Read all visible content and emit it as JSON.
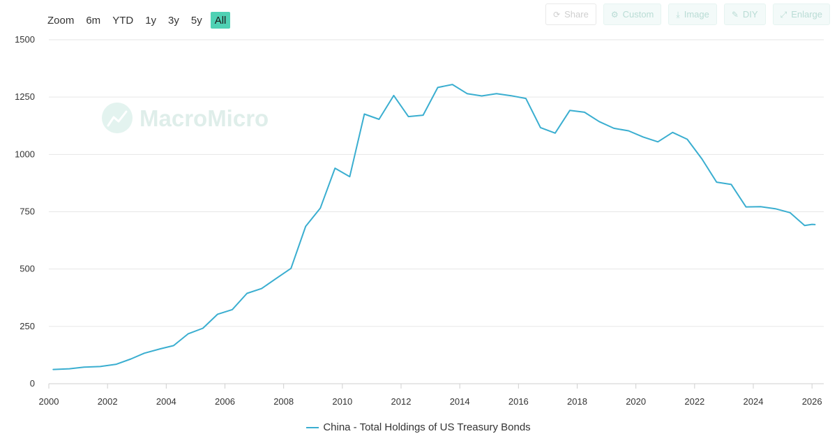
{
  "toolbar": {
    "zoom_label": "Zoom",
    "ranges": [
      "6m",
      "YTD",
      "1y",
      "3y",
      "5y",
      "All"
    ],
    "active_range": "All"
  },
  "actions": [
    {
      "label": "Share",
      "icon": "share-icon"
    },
    {
      "label": "Custom",
      "icon": "gear-icon"
    },
    {
      "label": "Image",
      "icon": "download-icon"
    },
    {
      "label": "DIY",
      "icon": "pencil-icon"
    },
    {
      "label": "Enlarge",
      "icon": "expand-icon"
    }
  ],
  "watermark": "MacroMicro",
  "colors": {
    "series": "#3aaed0",
    "active_zoom": "#4fd1b4",
    "grid": "#e6e6e6"
  },
  "chart_data": {
    "type": "line",
    "title": "",
    "xlabel": "",
    "ylabel": "",
    "xlim": [
      2000,
      2026.4
    ],
    "ylim": [
      0,
      1500
    ],
    "yticks": [
      0,
      250,
      500,
      750,
      1000,
      1250,
      1500
    ],
    "xticks": [
      2000,
      2002,
      2004,
      2006,
      2008,
      2010,
      2012,
      2014,
      2016,
      2018,
      2020,
      2022,
      2024,
      2026
    ],
    "grid": true,
    "legend_position": "bottom-center",
    "series": [
      {
        "name": "China - Total Holdings of US Treasury Bonds",
        "color": "#3aaed0",
        "x": [
          2000.15,
          2000.7,
          2001.2,
          2001.75,
          2002.3,
          2002.8,
          2003.25,
          2003.8,
          2004.25,
          2004.75,
          2005.25,
          2005.75,
          2006.25,
          2006.75,
          2007.25,
          2007.75,
          2008.25,
          2008.75,
          2009.25,
          2009.75,
          2010.25,
          2010.75,
          2011.25,
          2011.75,
          2012.25,
          2012.75,
          2013.25,
          2013.75,
          2014.25,
          2014.75,
          2015.25,
          2015.75,
          2016.25,
          2016.75,
          2017.25,
          2017.75,
          2018.25,
          2018.75,
          2019.25,
          2019.75,
          2020.25,
          2020.75,
          2021.25,
          2021.75,
          2022.25,
          2022.75,
          2023.25,
          2023.75,
          2024.25,
          2024.75,
          2025.25,
          2025.75,
          2026.0,
          2026.1
        ],
        "values": [
          62,
          65,
          72,
          75,
          85,
          108,
          133,
          152,
          166,
          218,
          242,
          303,
          323,
          394,
          415,
          459,
          503,
          686,
          766,
          940,
          903,
          1176,
          1153,
          1257,
          1165,
          1171,
          1292,
          1305,
          1265,
          1255,
          1265,
          1256,
          1244,
          1117,
          1093,
          1192,
          1184,
          1143,
          1114,
          1103,
          1076,
          1055,
          1096,
          1066,
          980,
          879,
          869,
          771,
          772,
          763,
          746,
          690,
          695,
          694
        ]
      }
    ]
  }
}
